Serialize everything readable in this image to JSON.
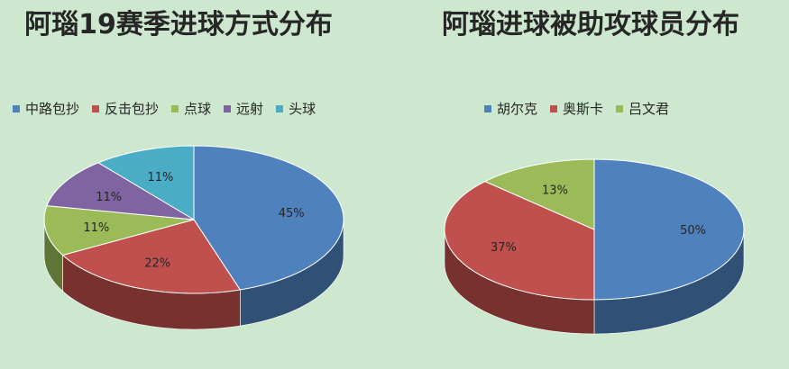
{
  "chart_data": [
    {
      "type": "pie",
      "title": "阿瑙19赛季进球方式分布",
      "categories": [
        "中路包抄",
        "反击包抄",
        "点球",
        "远射",
        "头球"
      ],
      "values": [
        45,
        22,
        11,
        11,
        11
      ],
      "value_labels": [
        "45%",
        "22%",
        "11%",
        "11%",
        "11%"
      ],
      "colors": [
        "#4f81bd",
        "#c0504d",
        "#9bbb59",
        "#8064a2",
        "#4bacc6"
      ],
      "legend": "top",
      "style": "3d"
    },
    {
      "type": "pie",
      "title": "阿瑙进球被助攻球员分布",
      "categories": [
        "胡尔克",
        "奥斯卡",
        "吕文君"
      ],
      "values": [
        50,
        37,
        13
      ],
      "value_labels": [
        "50%",
        "37%",
        "13%"
      ],
      "colors": [
        "#4f81bd",
        "#c0504d",
        "#9bbb59"
      ],
      "legend": "top",
      "style": "3d"
    }
  ]
}
